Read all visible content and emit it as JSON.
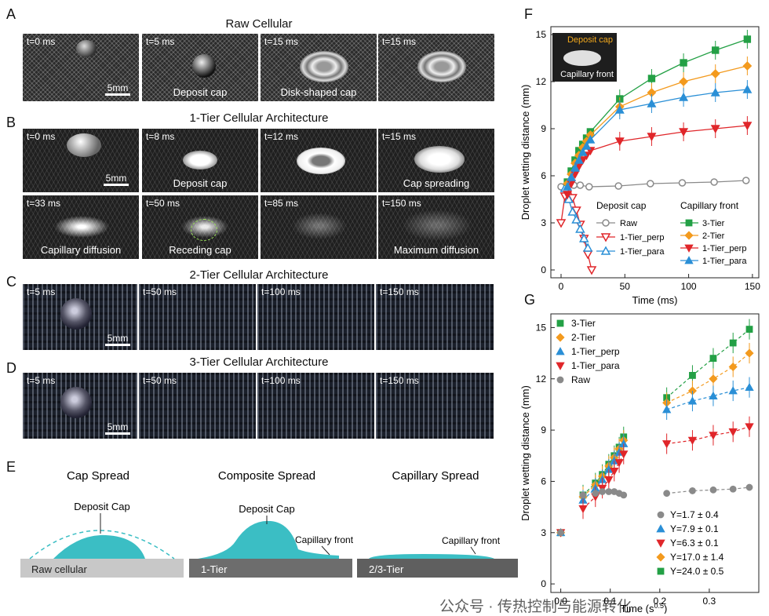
{
  "panelA": {
    "label": "A",
    "title": "Raw Cellular",
    "frames": [
      {
        "t": "t=0 ms",
        "cap": ""
      },
      {
        "t": "t=5 ms",
        "cap": "Deposit cap"
      },
      {
        "t": "t=15 ms",
        "cap": "Disk-shaped cap"
      },
      {
        "t": "t=15 ms",
        "cap": ""
      }
    ],
    "scale": "5mm"
  },
  "panelB": {
    "label": "B",
    "title": "1-Tier Cellular Architecture",
    "frames": [
      {
        "t": "t=0 ms",
        "cap": ""
      },
      {
        "t": "t=8 ms",
        "cap": "Deposit cap"
      },
      {
        "t": "t=12 ms",
        "cap": ""
      },
      {
        "t": "t=15 ms",
        "cap": "Cap spreading"
      },
      {
        "t": "t=33 ms",
        "cap": "Capillary diffusion"
      },
      {
        "t": "t=50 ms",
        "cap": "Receding cap"
      },
      {
        "t": "t=85 ms",
        "cap": ""
      },
      {
        "t": "t=150 ms",
        "cap": "Maximum diffusion"
      }
    ],
    "scale": "5mm"
  },
  "panelC": {
    "label": "C",
    "title": "2-Tier Cellular Architecture",
    "frames": [
      {
        "t": "t=5 ms"
      },
      {
        "t": "t=50 ms"
      },
      {
        "t": "t=100 ms"
      },
      {
        "t": "t=150 ms"
      }
    ],
    "scale": "5mm"
  },
  "panelD": {
    "label": "D",
    "title": "3-Tier Cellular Architecture",
    "frames": [
      {
        "t": "t=5 ms"
      },
      {
        "t": "t=50 ms"
      },
      {
        "t": "t=100 ms"
      },
      {
        "t": "t=150 ms"
      }
    ],
    "scale": "5mm"
  },
  "panelE": {
    "label": "E",
    "titles": [
      "Cap Spread",
      "Composite Spread",
      "Capillary Spread"
    ],
    "cap_labels": [
      "Deposit Cap",
      "Deposit Cap"
    ],
    "front_labels": [
      "Capillary front",
      "Capillary front"
    ],
    "substrates": [
      "Raw cellular",
      "1-Tier",
      "2/3-Tier"
    ],
    "colors": {
      "droplet": "#3bbec4",
      "raw": "#c8c8c8",
      "tier": "#6d6d6d"
    }
  },
  "panelF": {
    "label": "F"
  },
  "panelG": {
    "label": "G"
  },
  "watermark": "公众号 · 传热控制与能源转化",
  "chart_data": [
    {
      "type": "line",
      "panel": "F",
      "xlabel": "Time (ms)",
      "ylabel": "Droplet wetting distance (mm)",
      "xlim": [
        -8,
        155
      ],
      "ylim": [
        -0.5,
        15.5
      ],
      "xticks": [
        0,
        50,
        100,
        150
      ],
      "yticks": [
        0,
        3,
        6,
        9,
        12,
        15
      ],
      "inset_labels": [
        "Deposit cap",
        "Capillary front"
      ],
      "legend_groups": [
        {
          "title": "Deposit cap",
          "entries": [
            "Raw",
            "1-Tier_perp",
            "1-Tier_para"
          ]
        },
        {
          "title": "Capillary front",
          "entries": [
            "3-Tier",
            "2-Tier",
            "1-Tier_perp",
            "1-Tier_para"
          ]
        }
      ],
      "series": [
        {
          "name": "Raw",
          "group": "Deposit cap",
          "marker": "circle-open",
          "color": "#8a8a8a",
          "x": [
            0,
            5,
            10,
            15,
            22,
            45,
            70,
            95,
            120,
            145
          ],
          "y": [
            5.3,
            5.4,
            5.4,
            5.4,
            5.3,
            5.35,
            5.5,
            5.55,
            5.6,
            5.7
          ]
        },
        {
          "name": "1-Tier_perp",
          "group": "Deposit cap",
          "marker": "tri-down-open",
          "color": "#e0262a",
          "x": [
            0,
            3,
            6,
            9,
            12,
            15,
            18,
            21,
            24
          ],
          "y": [
            3.0,
            4.7,
            5.4,
            4.6,
            3.8,
            2.9,
            2.0,
            1.0,
            0
          ]
        },
        {
          "name": "1-Tier_para",
          "group": "Deposit cap",
          "marker": "tri-up-open",
          "color": "#2a8fd6",
          "x": [
            3,
            6,
            9,
            12,
            15,
            18,
            21
          ],
          "y": [
            5.2,
            4.5,
            3.7,
            3.2,
            2.6,
            2.0,
            1.4
          ]
        },
        {
          "name": "3-Tier",
          "group": "Capillary front",
          "marker": "square",
          "color": "#23a045",
          "x": [
            5,
            8,
            11,
            14,
            17,
            20,
            23,
            46,
            71,
            96,
            121,
            146
          ],
          "y": [
            5.6,
            6.3,
            7.0,
            7.6,
            8.0,
            8.4,
            8.8,
            10.9,
            12.2,
            13.2,
            14.0,
            14.7
          ]
        },
        {
          "name": "2-Tier",
          "group": "Capillary front",
          "marker": "diamond",
          "color": "#f39a1e",
          "x": [
            5,
            8,
            11,
            14,
            17,
            20,
            23,
            46,
            71,
            96,
            121,
            146
          ],
          "y": [
            5.5,
            6.1,
            6.8,
            7.3,
            7.8,
            8.2,
            8.6,
            10.4,
            11.3,
            12.0,
            12.5,
            13.0
          ]
        },
        {
          "name": "1-Tier_perp",
          "group": "Capillary front",
          "marker": "tri-down",
          "color": "#e0262a",
          "x": [
            5,
            8,
            11,
            14,
            17,
            20,
            23,
            46,
            71,
            96,
            121,
            146
          ],
          "y": [
            4.8,
            5.5,
            6.1,
            6.6,
            7.0,
            7.3,
            7.6,
            8.2,
            8.5,
            8.8,
            9.0,
            9.2
          ]
        },
        {
          "name": "1-Tier_para",
          "group": "Capillary front",
          "marker": "tri-up",
          "color": "#2a8fd6",
          "x": [
            5,
            8,
            11,
            14,
            17,
            20,
            23,
            46,
            71,
            96,
            121,
            146
          ],
          "y": [
            5.3,
            5.9,
            6.5,
            7.0,
            7.5,
            7.9,
            8.3,
            10.2,
            10.6,
            11.0,
            11.3,
            11.5
          ]
        }
      ]
    },
    {
      "type": "scatter",
      "panel": "G",
      "xlabel": "Time (s",
      "xlabel_sup": "0.5",
      "xlabel_end": ")",
      "ylabel": "Droplet wetting distance (mm)",
      "xlim": [
        -0.02,
        0.4
      ],
      "ylim": [
        -0.5,
        15.8
      ],
      "xticks": [
        0.0,
        0.1,
        0.2,
        0.3
      ],
      "xtick_labels": [
        "0.0",
        "0.1",
        "0.2",
        "0.3"
      ],
      "yticks": [
        0,
        3,
        6,
        9,
        12,
        15
      ],
      "legend": [
        "3-Tier",
        "2-Tier",
        "1-Tier_perp",
        "1-Tier_para",
        "Raw"
      ],
      "fits": [
        "Y=1.7 ± 0.4",
        "Y=7.9 ± 0.1",
        "Y=6.3 ± 0.1",
        "Y=17.0 ± 1.4",
        "Y=24.0 ± 0.5"
      ],
      "series": [
        {
          "name": "3-Tier",
          "marker": "square",
          "color": "#23a045",
          "x": [
            0.0,
            0.045,
            0.07,
            0.084,
            0.097,
            0.108,
            0.118,
            0.127,
            0.214,
            0.266,
            0.308,
            0.348,
            0.381
          ],
          "y": [
            3.0,
            5.2,
            5.9,
            6.4,
            7.0,
            7.5,
            8.0,
            8.6,
            10.9,
            12.2,
            13.2,
            14.1,
            14.9
          ]
        },
        {
          "name": "2-Tier",
          "marker": "diamond",
          "color": "#f39a1e",
          "x": [
            0.0,
            0.045,
            0.07,
            0.084,
            0.097,
            0.108,
            0.118,
            0.127,
            0.214,
            0.266,
            0.308,
            0.348,
            0.381
          ],
          "y": [
            3.0,
            5.1,
            5.8,
            6.3,
            6.9,
            7.4,
            7.9,
            8.4,
            10.6,
            11.3,
            12.0,
            12.7,
            13.5
          ]
        },
        {
          "name": "1-Tier_perp",
          "marker": "tri-up",
          "color": "#2a8fd6",
          "x": [
            0.0,
            0.045,
            0.07,
            0.084,
            0.097,
            0.108,
            0.118,
            0.127,
            0.214,
            0.266,
            0.308,
            0.348,
            0.381
          ],
          "y": [
            3.0,
            4.9,
            5.6,
            6.1,
            6.7,
            7.2,
            7.7,
            8.2,
            10.2,
            10.7,
            11.0,
            11.3,
            11.5
          ]
        },
        {
          "name": "1-Tier_para",
          "marker": "tri-down",
          "color": "#e0262a",
          "x": [
            0.0,
            0.045,
            0.07,
            0.084,
            0.097,
            0.108,
            0.118,
            0.127,
            0.214,
            0.266,
            0.308,
            0.348,
            0.381
          ],
          "y": [
            3.0,
            4.4,
            5.1,
            5.6,
            6.1,
            6.6,
            7.1,
            7.6,
            8.2,
            8.4,
            8.7,
            8.9,
            9.2
          ]
        },
        {
          "name": "Raw",
          "marker": "circle",
          "color": "#8a8a8a",
          "x": [
            0.0,
            0.045,
            0.07,
            0.084,
            0.097,
            0.108,
            0.118,
            0.127,
            0.214,
            0.266,
            0.308,
            0.348,
            0.381
          ],
          "y": [
            3.0,
            5.2,
            5.3,
            5.4,
            5.4,
            5.4,
            5.3,
            5.2,
            5.3,
            5.45,
            5.5,
            5.55,
            5.65
          ]
        }
      ]
    }
  ]
}
